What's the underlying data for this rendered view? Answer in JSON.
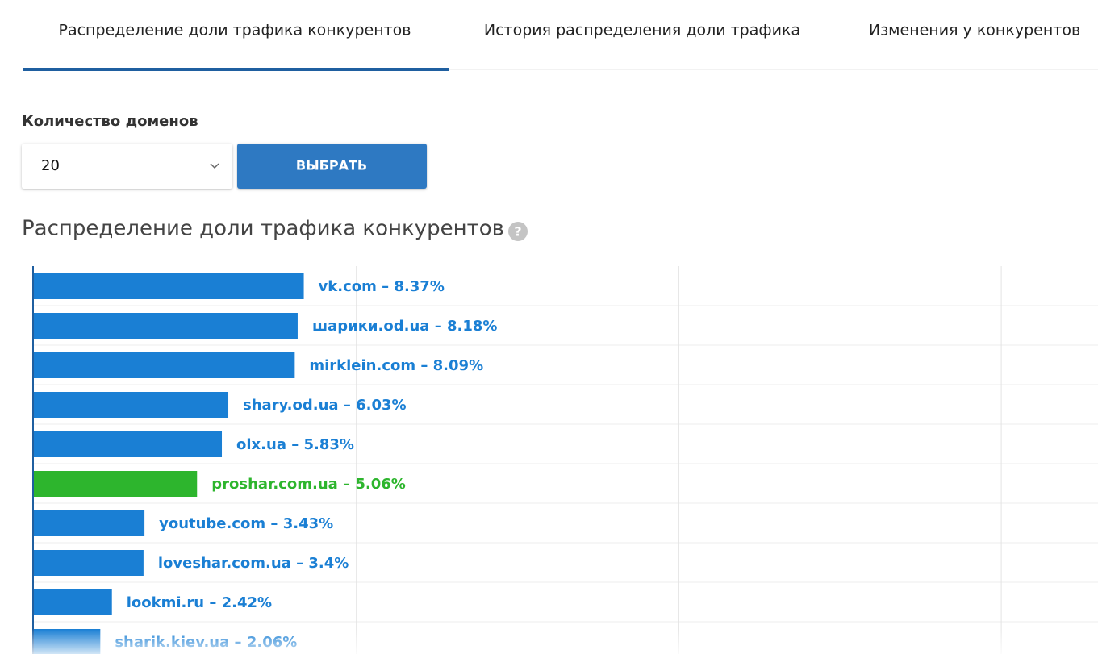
{
  "tabs": [
    "Распределение доли трафика конкурентов",
    "История распределения доли трафика",
    "Изменения у конкурентов"
  ],
  "form": {
    "label": "Количество доменов",
    "select_value": "20",
    "button": "ВЫБРАТЬ"
  },
  "section": {
    "title": "Распределение доли трафика конкурентов",
    "help_icon": "?"
  },
  "chart_data": {
    "type": "bar",
    "orientation": "horizontal",
    "categories": [
      "vk.com",
      "шарики.od.ua",
      "mirklein.com",
      "shary.od.ua",
      "olx.ua",
      "proshar.com.ua",
      "youtube.com",
      "loveshar.com.ua",
      "lookmi.ru",
      "sharik.kiev.ua"
    ],
    "values": [
      8.37,
      8.18,
      8.09,
      6.03,
      5.83,
      5.06,
      3.43,
      3.4,
      2.42,
      2.06
    ],
    "value_labels": [
      "8.37%",
      "8.18%",
      "8.09%",
      "6.03%",
      "5.83%",
      "5.06%",
      "3.43%",
      "3.4%",
      "2.42%",
      "2.06%"
    ],
    "label_separator": " – ",
    "colors": [
      "#1a7fd4",
      "#1a7fd4",
      "#1a7fd4",
      "#1a7fd4",
      "#1a7fd4",
      "#2db52d",
      "#1a7fd4",
      "#1a7fd4",
      "#1a7fd4",
      "#1a7fd4"
    ],
    "xlim": [
      0,
      33
    ],
    "xticks": [
      0,
      10,
      20,
      30
    ],
    "grid": true
  }
}
